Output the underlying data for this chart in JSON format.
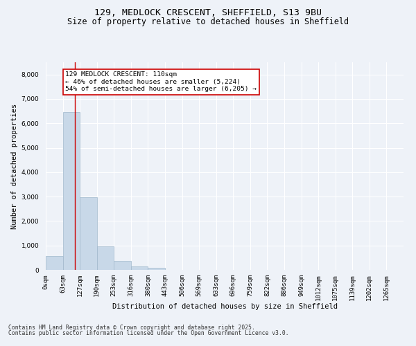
{
  "title_line1": "129, MEDLOCK CRESCENT, SHEFFIELD, S13 9BU",
  "title_line2": "Size of property relative to detached houses in Sheffield",
  "xlabel": "Distribution of detached houses by size in Sheffield",
  "ylabel": "Number of detached properties",
  "bar_color": "#c8d8e8",
  "bar_edgecolor": "#a0b8cc",
  "categories": [
    "0sqm",
    "63sqm",
    "127sqm",
    "190sqm",
    "253sqm",
    "316sqm",
    "380sqm",
    "443sqm",
    "506sqm",
    "569sqm",
    "633sqm",
    "696sqm",
    "759sqm",
    "822sqm",
    "886sqm",
    "949sqm",
    "1012sqm",
    "1075sqm",
    "1139sqm",
    "1202sqm",
    "1265sqm"
  ],
  "values": [
    580,
    6450,
    2980,
    970,
    360,
    150,
    80,
    0,
    0,
    0,
    0,
    0,
    0,
    0,
    0,
    0,
    0,
    0,
    0,
    0,
    0
  ],
  "ylim": [
    0,
    8500
  ],
  "yticks": [
    0,
    1000,
    2000,
    3000,
    4000,
    5000,
    6000,
    7000,
    8000
  ],
  "vline_x": 1.72,
  "annotation_text": "129 MEDLOCK CRESCENT: 110sqm\n← 46% of detached houses are smaller (5,224)\n54% of semi-detached houses are larger (6,205) →",
  "annotation_box_color": "#ffffff",
  "annotation_box_edgecolor": "#cc0000",
  "footer_line1": "Contains HM Land Registry data © Crown copyright and database right 2025.",
  "footer_line2": "Contains public sector information licensed under the Open Government Licence v3.0.",
  "background_color": "#eef2f8",
  "plot_background_color": "#eef2f8",
  "grid_color": "#ffffff",
  "vline_color": "#cc0000",
  "title_fontsize": 9.5,
  "subtitle_fontsize": 8.5,
  "axis_label_fontsize": 7.5,
  "tick_fontsize": 6.5,
  "annotation_fontsize": 6.8,
  "footer_fontsize": 5.8
}
